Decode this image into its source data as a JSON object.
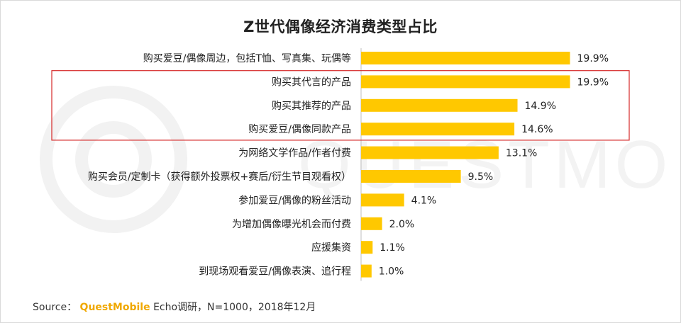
{
  "title": "Z世代偶像经济消费类型占比",
  "source": {
    "prefix": "Source：",
    "brand": "QuestMobile",
    "suffix": "Echo调研，N=1000，2018年12月"
  },
  "watermark_text": "QUESTMOBILE",
  "colors": {
    "bar": "#ffc800",
    "highlight_border": "#d62a2a",
    "brand": "#f0a800"
  },
  "chart_data": {
    "type": "bar",
    "orientation": "horizontal",
    "title": "Z世代偶像经济消费类型占比",
    "categories": [
      "购买爱豆/偶像周边，包括T恤、写真集、玩偶等",
      "购买其代言的产品",
      "购买其推荐的产品",
      "购买爱豆/偶像同款产品",
      "为网络文学作品/作者付费",
      "购买会员/定制卡（获得额外投票权+赛后/衍生节目观看权）",
      "参加爱豆/偶像的粉丝活动",
      "为增加偶像曝光机会而付费",
      "应援集资",
      "到现场观看爱豆/偶像表演、追行程"
    ],
    "values": [
      19.9,
      19.9,
      14.9,
      14.6,
      13.1,
      9.5,
      4.1,
      2.0,
      1.1,
      1.0
    ],
    "labels": [
      "19.9%",
      "19.9%",
      "14.9%",
      "14.6%",
      "13.1%",
      "9.5%",
      "4.1%",
      "2.0%",
      "1.1%",
      "1.0%"
    ],
    "highlighted_categories": [
      "购买其代言的产品",
      "购买其推荐的产品",
      "购买爱豆/偶像同款产品"
    ],
    "xlim": [
      0,
      20
    ],
    "grid": false,
    "legend": "none"
  }
}
